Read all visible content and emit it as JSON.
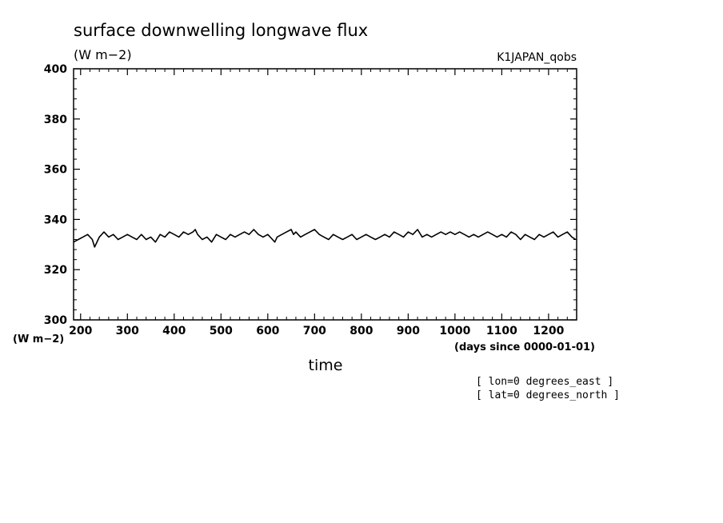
{
  "chart_data": {
    "type": "line",
    "title": "surface downwelling longwave flux",
    "units_label": "(W m−2)",
    "dataset_label": "K1JAPAN_qobs",
    "ylabel_units": "(W m−2)",
    "xlabel": "time",
    "xlabel_units": "(days since 0000-01-01)",
    "xlim": [
      185,
      1260
    ],
    "ylim": [
      300,
      400
    ],
    "x_ticks": [
      200,
      300,
      400,
      500,
      600,
      700,
      800,
      900,
      1000,
      1100,
      1200
    ],
    "y_ticks": [
      300,
      320,
      340,
      360,
      380,
      400
    ],
    "grid": false,
    "annotations": [
      "[ lon=0 degrees_east ]",
      "[ lat=0 degrees_north ]"
    ],
    "series": [
      {
        "x": [
          185,
          195,
          205,
          215,
          225,
          230,
          240,
          250,
          260,
          270,
          280,
          290,
          300,
          310,
          320,
          330,
          340,
          350,
          360,
          370,
          380,
          390,
          400,
          410,
          420,
          430,
          440,
          445,
          450,
          460,
          470,
          480,
          490,
          500,
          510,
          520,
          530,
          540,
          550,
          560,
          570,
          580,
          590,
          600,
          610,
          615,
          620,
          630,
          640,
          650,
          655,
          660,
          670,
          680,
          690,
          700,
          710,
          720,
          730,
          740,
          750,
          760,
          770,
          780,
          790,
          800,
          810,
          820,
          830,
          840,
          850,
          860,
          870,
          880,
          890,
          900,
          910,
          920,
          930,
          940,
          950,
          960,
          970,
          980,
          990,
          1000,
          1010,
          1020,
          1030,
          1040,
          1050,
          1060,
          1070,
          1080,
          1090,
          1100,
          1110,
          1120,
          1130,
          1140,
          1150,
          1160,
          1170,
          1180,
          1190,
          1200,
          1210,
          1220,
          1230,
          1240,
          1250,
          1258
        ],
        "y": [
          331,
          332,
          333,
          334,
          332,
          329,
          333,
          335,
          333,
          334,
          332,
          333,
          334,
          333,
          332,
          334,
          332,
          333,
          331,
          334,
          333,
          335,
          334,
          333,
          335,
          334,
          335,
          336,
          334,
          332,
          333,
          331,
          334,
          333,
          332,
          334,
          333,
          334,
          335,
          334,
          336,
          334,
          333,
          334,
          332,
          331,
          333,
          334,
          335,
          336,
          334,
          335,
          333,
          334,
          335,
          336,
          334,
          333,
          332,
          334,
          333,
          332,
          333,
          334,
          332,
          333,
          334,
          333,
          332,
          333,
          334,
          333,
          335,
          334,
          333,
          335,
          334,
          336,
          333,
          334,
          333,
          334,
          335,
          334,
          335,
          334,
          335,
          334,
          333,
          334,
          333,
          334,
          335,
          334,
          333,
          334,
          333,
          335,
          334,
          332,
          334,
          333,
          332,
          334,
          333,
          334,
          335,
          333,
          334,
          335,
          333,
          332
        ]
      }
    ]
  }
}
